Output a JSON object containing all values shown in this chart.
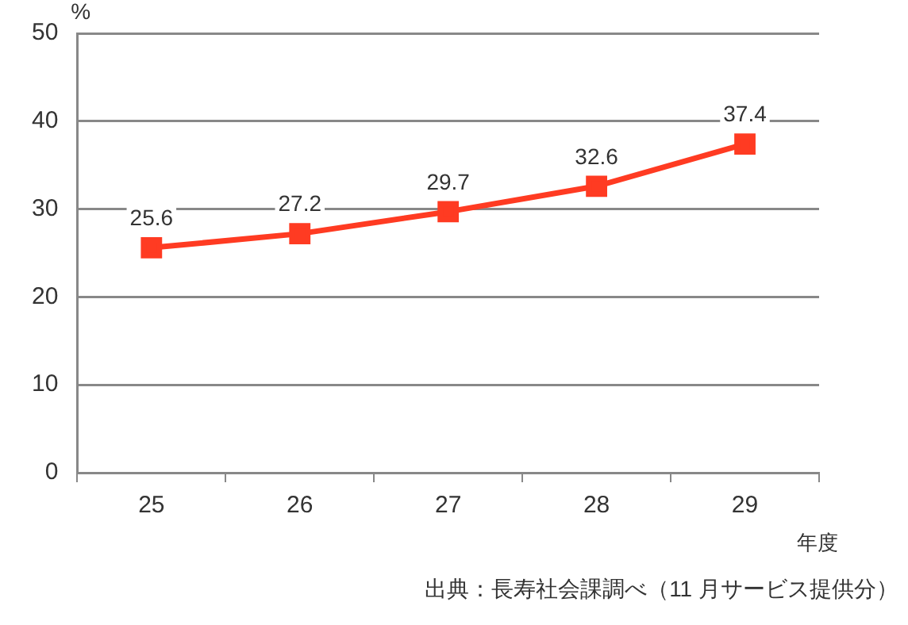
{
  "chart_data": {
    "type": "line",
    "xlabel": "年度",
    "ylabel": "%",
    "categories": [
      "25",
      "26",
      "27",
      "28",
      "29"
    ],
    "series": [
      {
        "color": "#ff3b22",
        "values": [
          25.6,
          27.2,
          29.7,
          32.6,
          37.4
        ]
      }
    ],
    "ylim": [
      0,
      50
    ],
    "yticks": [
      0,
      10,
      20,
      30,
      40,
      50
    ],
    "grid": "y",
    "legend": false,
    "marker": "square",
    "line_style": "solid",
    "data_labels": true,
    "annotations": [
      "出典：長寿社会課調べ（11 月サービス提供分）"
    ]
  }
}
